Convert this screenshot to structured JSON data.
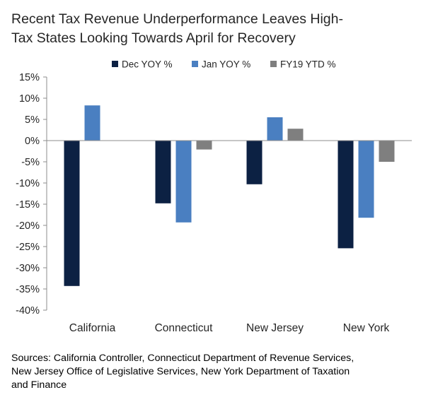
{
  "title_lines": [
    "Recent Tax Revenue Underperformance Leaves High-",
    "Tax States Looking Towards April for Recovery"
  ],
  "source_lines": [
    "Sources: California Controller, Connecticut Department of Revenue Services,",
    "New Jersey Office of Legislative Services, New York Department of Taxation",
    "and Finance"
  ],
  "chart_data": {
    "type": "bar",
    "categories": [
      "California",
      "Connecticut",
      "New Jersey",
      "New York"
    ],
    "series": [
      {
        "name": "Dec YOY %",
        "color": "#0c2143",
        "values": [
          -34.3,
          -14.8,
          -10.3,
          -25.4
        ]
      },
      {
        "name": "Jan YOY %",
        "color": "#4a7fc1",
        "values": [
          8.3,
          -19.3,
          5.5,
          -18.2
        ]
      },
      {
        "name": "FY19 YTD %",
        "color": "#7f7f7f",
        "values": [
          null,
          -2.1,
          2.8,
          -5.0
        ]
      }
    ],
    "ylim": [
      -40,
      15
    ],
    "yticks": [
      15,
      10,
      5,
      0,
      -5,
      -10,
      -15,
      -20,
      -25,
      -30,
      -35,
      -40
    ],
    "ytick_labels": [
      "15%",
      "10%",
      "5%",
      "0%",
      "-5%",
      "-10%",
      "-15%",
      "-20%",
      "-25%",
      "-30%",
      "-35%",
      "-40%"
    ],
    "title": "Recent Tax Revenue Underperformance Leaves High-Tax States Looking Towards April for Recovery",
    "xlabel": "",
    "ylabel": "",
    "grid": false,
    "legend_position": "top"
  }
}
